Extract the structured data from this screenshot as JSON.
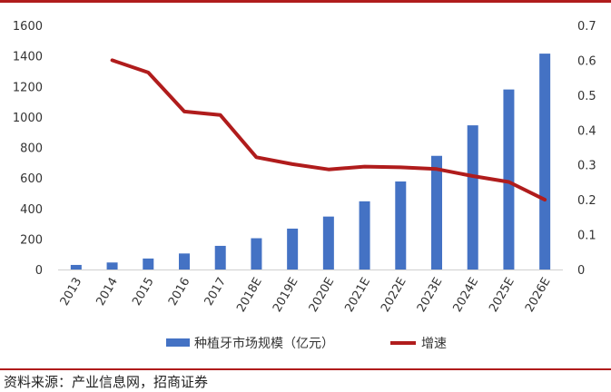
{
  "chart_data": {
    "type": "bar",
    "title": "",
    "xlabel": "",
    "categories": [
      "2013",
      "2014",
      "2015",
      "2016",
      "2017",
      "2018E",
      "2019E",
      "2020E",
      "2021E",
      "2022E",
      "2023E",
      "2024E",
      "2025E",
      "2026E"
    ],
    "y_left": {
      "ticks": [
        "0",
        "200",
        "400",
        "600",
        "800",
        "1000",
        "1200",
        "1400",
        "1600"
      ],
      "ylim": [
        0,
        1600
      ]
    },
    "y_right": {
      "ticks": [
        "0",
        "0.1",
        "0.2",
        "0.3",
        "0.4",
        "0.5",
        "0.6",
        "0.7"
      ],
      "ylim": [
        0,
        0.7
      ]
    },
    "series": [
      {
        "name": "种植牙市场规模（亿元）",
        "type": "bar",
        "axis": "left",
        "color": "#4472c4",
        "values": [
          30,
          46,
          72,
          105,
          155,
          205,
          268,
          347,
          447,
          577,
          745,
          945,
          1180,
          1415
        ]
      },
      {
        "name": "增速",
        "type": "line",
        "axis": "right",
        "color": "#b01c1c",
        "values": [
          null,
          0.6,
          0.565,
          0.453,
          0.443,
          0.322,
          0.302,
          0.287,
          0.295,
          0.293,
          0.288,
          0.268,
          0.251,
          0.2
        ]
      }
    ],
    "legend": "bottom",
    "grid": false
  },
  "source": "资料来源：产业信息网，招商证券"
}
